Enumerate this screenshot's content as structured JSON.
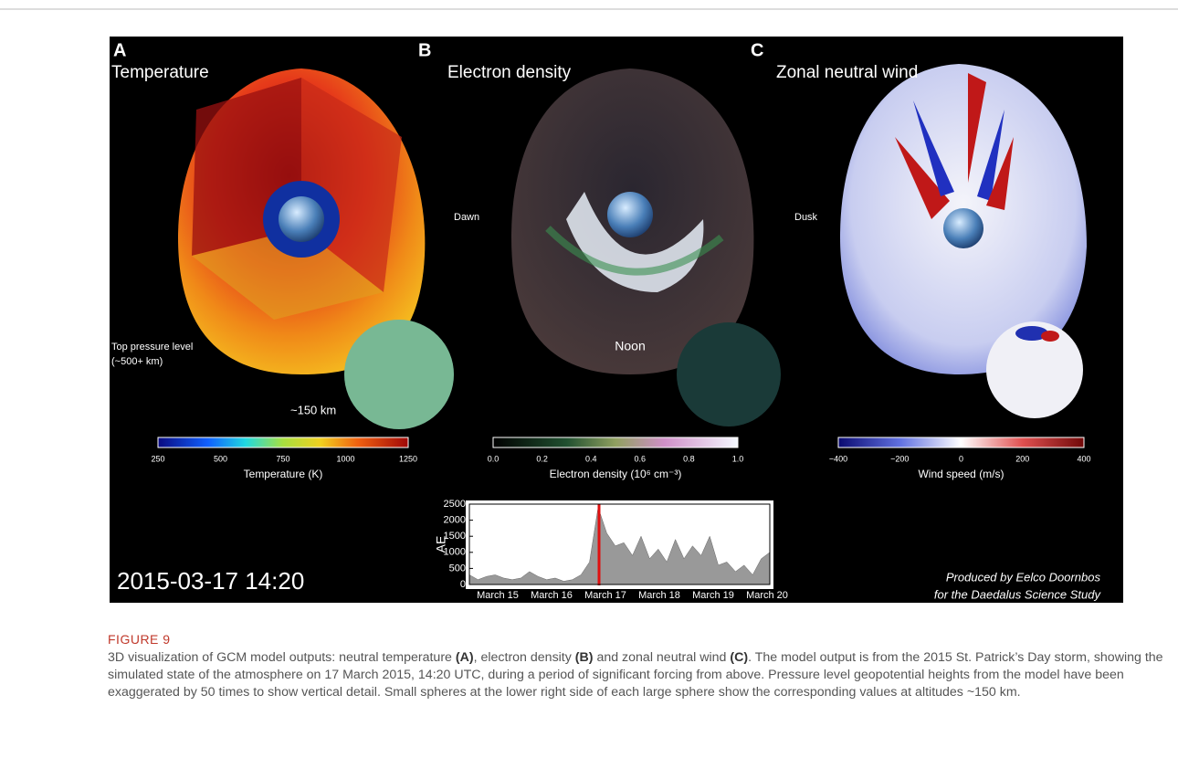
{
  "figure": {
    "panels": [
      {
        "letter": "A",
        "title": "Temperature",
        "colorbar_ticks": [
          "250",
          "500",
          "750",
          "1000",
          "1250"
        ],
        "colorbar_label": "Temperature (K)",
        "notes": [
          "Top pressure level",
          "(~500+ km)",
          "~150 km"
        ]
      },
      {
        "letter": "B",
        "title": "Electron density",
        "colorbar_ticks": [
          "0.0",
          "0.2",
          "0.4",
          "0.6",
          "0.8",
          "1.0"
        ],
        "colorbar_label": "Electron density (10⁶ cm⁻³)",
        "notes": [
          "Dawn",
          "Noon"
        ]
      },
      {
        "letter": "C",
        "title": "Zonal neutral wind",
        "colorbar_ticks": [
          "−400",
          "−200",
          "0",
          "200",
          "400"
        ],
        "colorbar_label": "Wind speed (m/s)",
        "notes": [
          "Dusk"
        ]
      }
    ],
    "timestamp": "2015-03-17 14:20",
    "credit": [
      "Produced by Eelco Doornbos",
      "for the Daedalus Science Study"
    ],
    "ae_inset": {
      "y_label": "AE",
      "ylim": [
        0,
        2500
      ],
      "yticks": [
        0,
        500,
        1000,
        1500,
        2000,
        2500
      ],
      "categories": [
        "March 15",
        "March 16",
        "March 17",
        "March 18",
        "March 19",
        "March 20"
      ],
      "values": [
        300,
        150,
        250,
        300,
        200,
        150,
        200,
        400,
        250,
        150,
        200,
        100,
        150,
        300,
        700,
        2400,
        1600,
        1200,
        1300,
        900,
        1500,
        800,
        1100,
        700,
        1400,
        800,
        1200,
        900,
        1500,
        600,
        700,
        400,
        600,
        300,
        800,
        1000
      ]
    }
  },
  "caption": {
    "label": "FIGURE 9",
    "parts": [
      "3D visualization of GCM model outputs: neutral temperature ",
      "(A)",
      ", electron density ",
      "(B)",
      " and zonal neutral wind ",
      "(C)",
      ". The model output is from the 2015 St. Patrick’s Day storm, showing the simulated state of the atmosphere on 17 March 2015, 14:20 UTC, during a period of significant forcing from above. Pressure level geopotential heights from the model have been exaggerated by 50 times to show vertical detail. Small spheres at the lower right side of each large sphere show the corresponding values at altitudes ~150 km."
    ]
  }
}
